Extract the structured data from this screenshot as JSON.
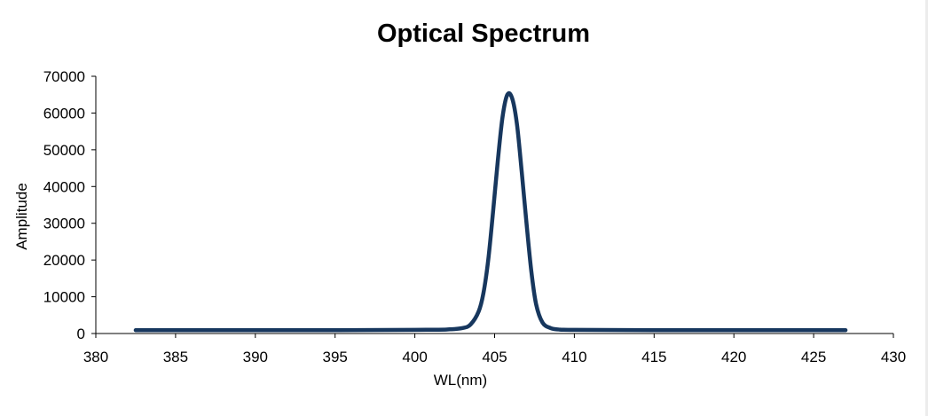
{
  "chart_data": {
    "type": "line",
    "title": "Optical Spectrum",
    "xlabel": "WL(nm)",
    "ylabel": "Amplitude",
    "xlim": [
      380,
      430
    ],
    "ylim": [
      0,
      70000
    ],
    "x_ticks": [
      "380",
      "385",
      "390",
      "395",
      "400",
      "405",
      "410",
      "415",
      "420",
      "425",
      "430"
    ],
    "y_ticks": [
      "0",
      "10000",
      "20000",
      "30000",
      "40000",
      "50000",
      "60000",
      "70000"
    ],
    "grid": false,
    "line_color": "#17375e",
    "series": [
      {
        "x": [
          382.5,
          385,
          390,
          395,
          400,
          402,
          403,
          403.5,
          404,
          404.3,
          404.6,
          404.9,
          405.2,
          405.5,
          405.8,
          406.1,
          406.4,
          406.7,
          407.0,
          407.3,
          407.6,
          408,
          408.5,
          409,
          410,
          415,
          420,
          425,
          427
        ],
        "y": [
          900,
          900,
          900,
          900,
          1000,
          1100,
          1500,
          2500,
          6000,
          11000,
          20000,
          33000,
          47000,
          59000,
          65000,
          64000,
          57000,
          44000,
          30000,
          17000,
          8000,
          3000,
          1500,
          1100,
          1000,
          900,
          900,
          900,
          900
        ]
      }
    ]
  }
}
